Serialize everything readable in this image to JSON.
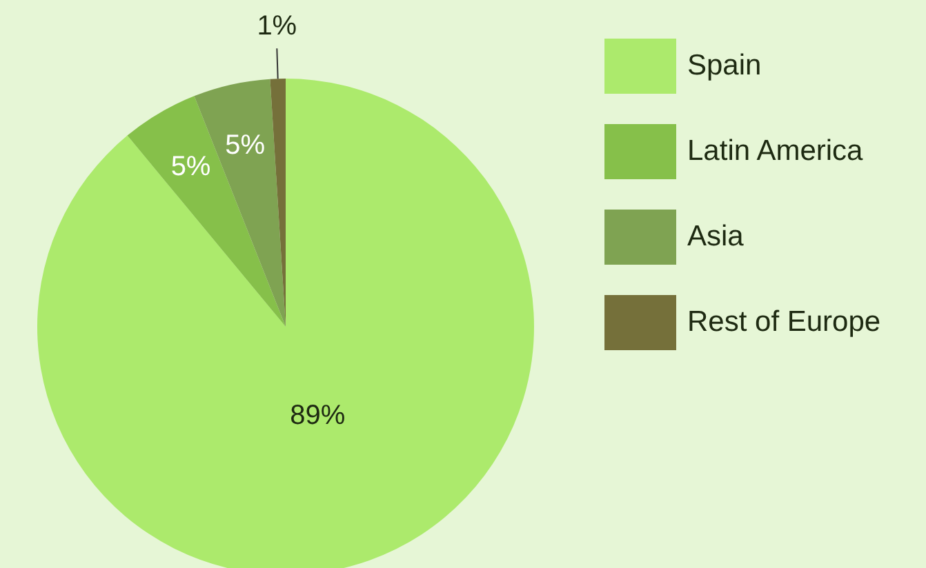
{
  "chart_data": {
    "type": "pie",
    "categories": [
      "Spain",
      "Latin America",
      "Asia",
      "Rest of Europe"
    ],
    "values": [
      89,
      5,
      5,
      1
    ],
    "colors": [
      "#acea6c",
      "#86c04a",
      "#7fa352",
      "#75703a"
    ],
    "value_labels": [
      "89%",
      "5%",
      "5%",
      "1%"
    ],
    "legend": "right"
  }
}
